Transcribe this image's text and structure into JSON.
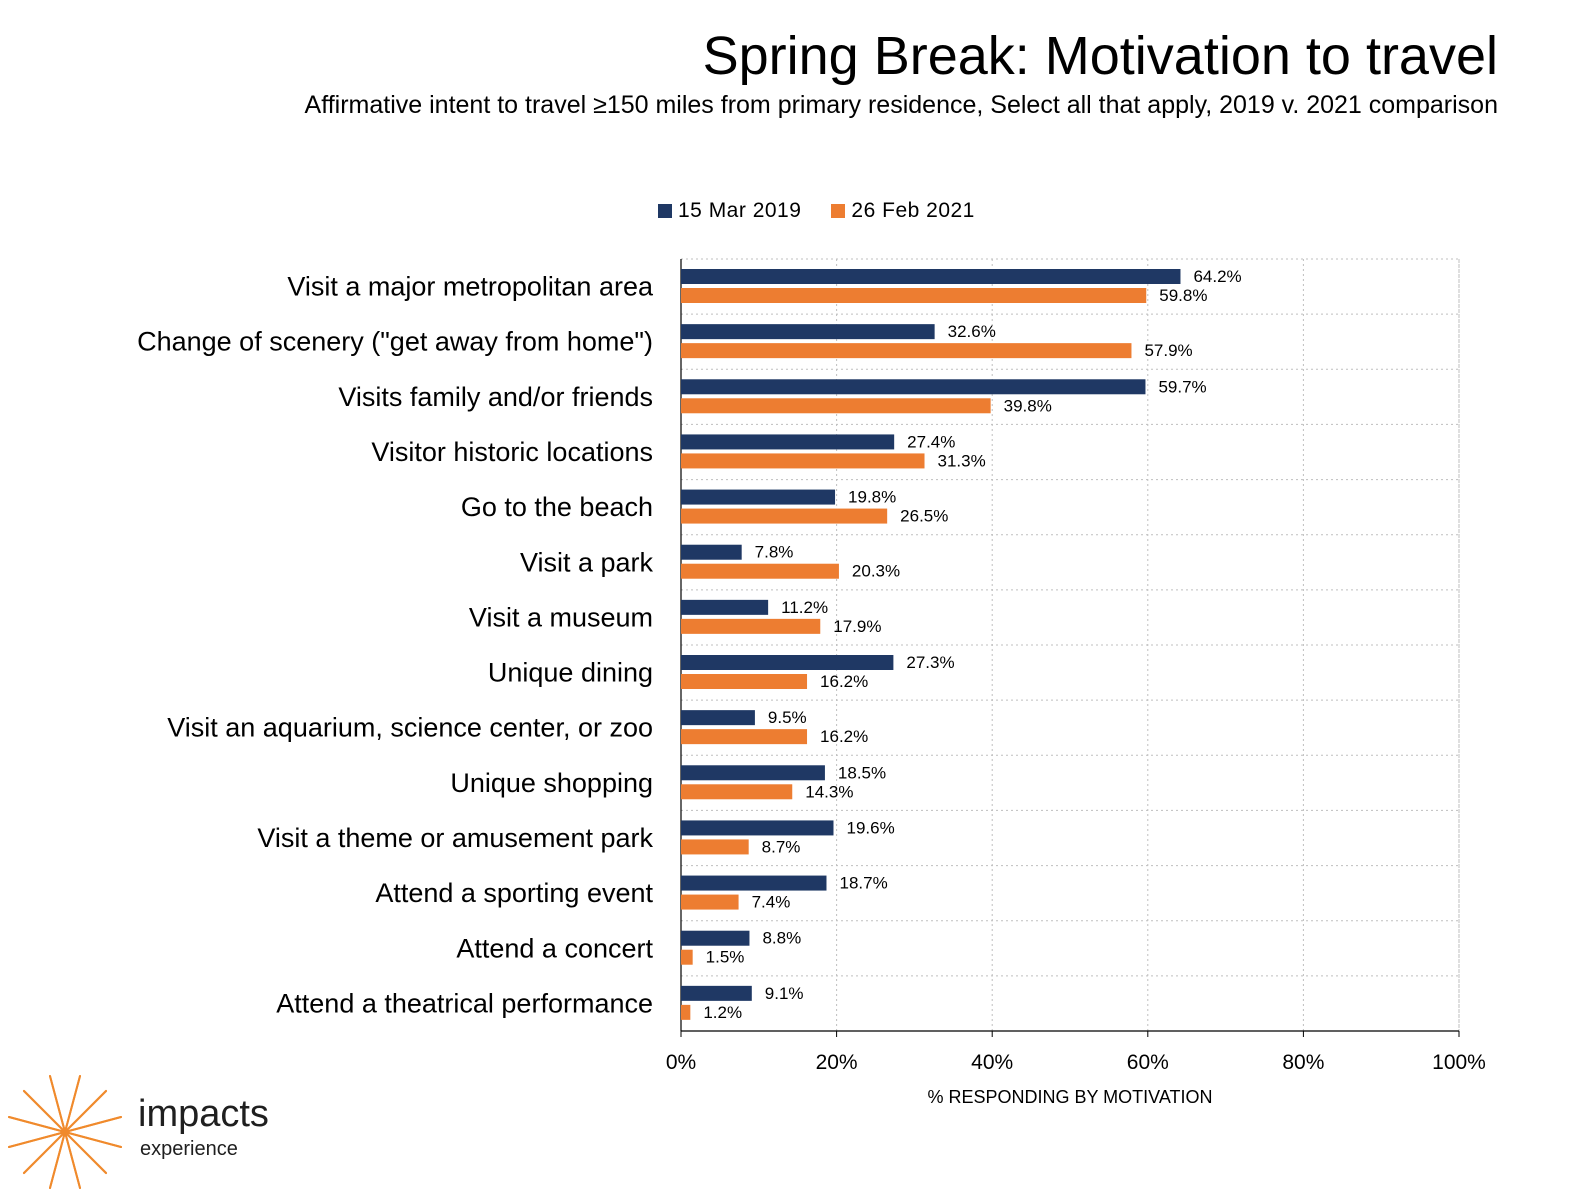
{
  "header": {
    "title": "Spring Break: Motivation to travel",
    "subtitle": "Affirmative intent to travel ≥150 miles from primary residence, Select all that apply, 2019 v. 2021 comparison"
  },
  "colors": {
    "series_2019": "#1f3864",
    "series_2021": "#ed7d31",
    "grid": "#bfbfbf",
    "logo": "#f08a2c"
  },
  "logo": {
    "icon": "sunburst-icon",
    "word": "impacts",
    "sub": "experience"
  },
  "chart_data": {
    "type": "bar",
    "orientation": "horizontal",
    "categories": [
      "Visit a major metropolitan area",
      "Change of scenery (\"get away from home\")",
      "Visits family and/or friends",
      "Visitor historic locations",
      "Go to the beach",
      "Visit a park",
      "Visit a museum",
      "Unique dining",
      "Visit an aquarium, science center, or zoo",
      "Unique shopping",
      "Visit a theme or amusement park",
      "Attend a sporting event",
      "Attend a concert",
      "Attend a theatrical performance"
    ],
    "series": [
      {
        "name": "15 Mar 2019",
        "values": [
          64.2,
          32.6,
          59.7,
          27.4,
          19.8,
          7.8,
          11.2,
          27.3,
          9.5,
          18.5,
          19.6,
          18.7,
          8.8,
          9.1
        ]
      },
      {
        "name": "26 Feb 2021",
        "values": [
          59.8,
          57.9,
          39.8,
          31.3,
          26.5,
          20.3,
          17.9,
          16.2,
          16.2,
          14.3,
          8.7,
          7.4,
          1.5,
          1.2
        ]
      }
    ],
    "xlabel": "% RESPONDING BY MOTIVATION",
    "ylabel": "",
    "xlim": [
      0,
      100
    ],
    "xticks": [
      "0%",
      "20%",
      "40%",
      "60%",
      "80%",
      "100%"
    ],
    "value_suffix": "%",
    "grid": true,
    "legend": "top-center"
  }
}
